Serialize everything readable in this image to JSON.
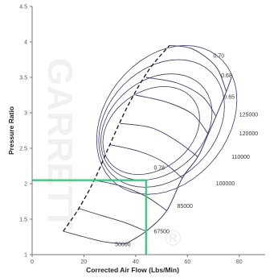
{
  "chart_data": {
    "type": "line",
    "title": "",
    "xlabel": "Corrected Air Flow (Lbs/Min)",
    "ylabel": "Pressure Ratio",
    "xlim": [
      0,
      90
    ],
    "ylim": [
      1,
      4.5
    ],
    "x_ticks": [
      "0",
      "20",
      "40",
      "60",
      "80"
    ],
    "x_tick_values": [
      0,
      20,
      40,
      60,
      80
    ],
    "y_ticks": [
      "1",
      "1.5",
      "2",
      "2.5",
      "3",
      "3.5",
      "4",
      "4.5"
    ],
    "y_tick_values": [
      1,
      1.5,
      2,
      2.5,
      3,
      3.5,
      4,
      4.5
    ],
    "grid": false,
    "legend": "none",
    "watermark": "®",
    "surge_line": [
      [
        12,
        1.33
      ],
      [
        18,
        1.65
      ],
      [
        24,
        2.05
      ],
      [
        30,
        2.55
      ],
      [
        37,
        3.1
      ],
      [
        45,
        3.6
      ],
      [
        53,
        3.95
      ]
    ],
    "speed_lines": [
      {
        "label": "50000",
        "points": [
          [
            12,
            1.33
          ],
          [
            20,
            1.25
          ],
          [
            28,
            1.18
          ],
          [
            36,
            1.15
          ]
        ]
      },
      {
        "label": "67500",
        "points": [
          [
            18,
            1.65
          ],
          [
            27,
            1.55
          ],
          [
            36,
            1.45
          ],
          [
            44,
            1.33
          ]
        ]
      },
      {
        "label": "85000",
        "points": [
          [
            24,
            2.05
          ],
          [
            34,
            1.97
          ],
          [
            44,
            1.82
          ],
          [
            52,
            1.62
          ]
        ]
      },
      {
        "label": "100000",
        "points": [
          [
            30,
            2.55
          ],
          [
            41,
            2.46
          ],
          [
            50,
            2.32
          ],
          [
            58,
            2.08
          ]
        ]
      },
      {
        "label": "110000",
        "points": [
          [
            34,
            2.85
          ],
          [
            46,
            2.79
          ],
          [
            56,
            2.6
          ],
          [
            64,
            2.38
          ]
        ]
      },
      {
        "label": "120000",
        "points": [
          [
            40,
            3.25
          ],
          [
            52,
            3.15
          ],
          [
            62,
            2.98
          ],
          [
            68,
            2.7
          ]
        ]
      },
      {
        "label": "125000",
        "points": [
          [
            44,
            3.5
          ],
          [
            56,
            3.42
          ],
          [
            66,
            3.22
          ],
          [
            71,
            2.95
          ]
        ]
      },
      {
        "label": "",
        "points": [
          [
            53,
            3.95
          ],
          [
            62,
            3.9
          ],
          [
            71,
            3.65
          ],
          [
            75,
            3.3
          ]
        ]
      }
    ],
    "choke_line": [
      [
        36,
        1.15
      ],
      [
        44,
        1.33
      ],
      [
        52,
        1.62
      ],
      [
        58,
        2.08
      ],
      [
        64,
        2.38
      ],
      [
        68,
        2.7
      ],
      [
        71,
        2.95
      ],
      [
        75,
        3.3
      ],
      [
        77,
        3.5
      ]
    ],
    "efficiency_islands": [
      {
        "label": "0.70",
        "cx": 46,
        "cy": 2.75,
        "rx": 20,
        "ry": 0.62
      },
      {
        "label": "0.68",
        "cx": 48,
        "cy": 2.8,
        "rx": 23,
        "ry": 0.75
      },
      {
        "label": "0.65",
        "cx": 50,
        "cy": 2.85,
        "rx": 26,
        "ry": 0.9
      },
      {
        "label": "",
        "cx": 52,
        "cy": 2.9,
        "rx": 29,
        "ry": 1.05
      }
    ],
    "efficiency_labels": [
      {
        "label": "0.70",
        "x": 70,
        "y": 3.78
      },
      {
        "label": "0.68",
        "x": 73,
        "y": 3.5
      },
      {
        "label": "0.65",
        "x": 74,
        "y": 3.2
      },
      {
        "label": "0.78",
        "x": 47,
        "y": 2.2
      }
    ],
    "speed_label_positions": [
      {
        "label": "125000",
        "x": 80,
        "y": 2.95
      },
      {
        "label": "120000",
        "x": 80,
        "y": 2.68
      },
      {
        "label": "110000",
        "x": 77,
        "y": 2.35
      },
      {
        "label": "100000",
        "x": 71,
        "y": 1.98
      },
      {
        "label": "85000",
        "x": 56,
        "y": 1.66
      },
      {
        "label": "67500",
        "x": 47,
        "y": 1.3
      },
      {
        "label": "50000",
        "x": 32,
        "y": 1.12
      }
    ],
    "operating_point": {
      "x": 44,
      "y": 2.05
    }
  }
}
